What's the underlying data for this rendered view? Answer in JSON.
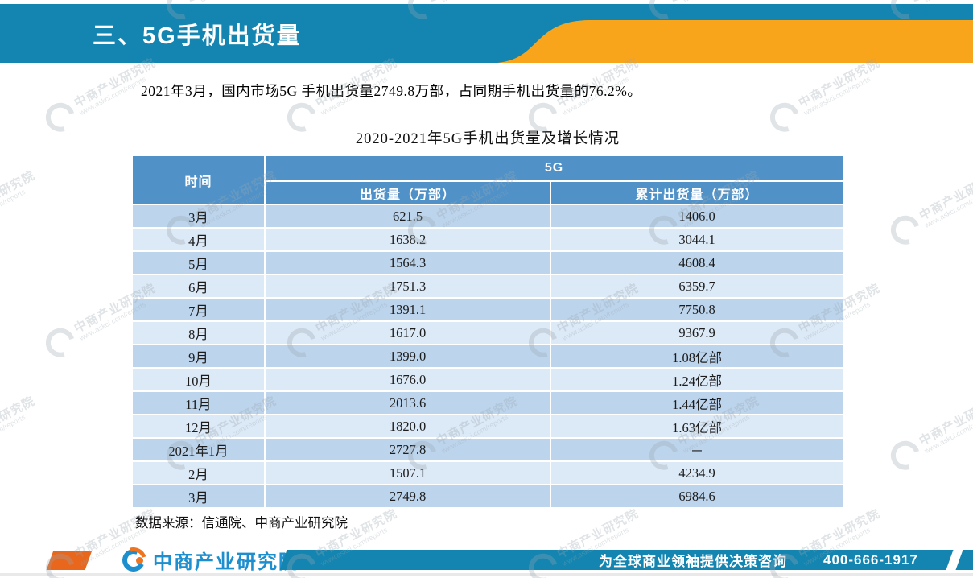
{
  "header": {
    "title": "三、5G手机出货量"
  },
  "intro": {
    "text": "2021年3月，国内市场5G 手机出货量2749.8万部，占同期手机出货量的76.2%。"
  },
  "table": {
    "title": "2020-2021年5G手机出货量及增长情况",
    "col_time": "时间",
    "col_group": "5G",
    "col_shipments": "出货量（万部）",
    "col_cumulative": "累计出货量（万部）",
    "rows": [
      {
        "time": "3月",
        "shipments": "621.5",
        "cumulative": "1406.0"
      },
      {
        "time": "4月",
        "shipments": "1638.2",
        "cumulative": "3044.1"
      },
      {
        "time": "5月",
        "shipments": "1564.3",
        "cumulative": "4608.4"
      },
      {
        "time": "6月",
        "shipments": "1751.3",
        "cumulative": "6359.7"
      },
      {
        "time": "7月",
        "shipments": "1391.1",
        "cumulative": "7750.8"
      },
      {
        "time": "8月",
        "shipments": "1617.0",
        "cumulative": "9367.9"
      },
      {
        "time": "9月",
        "shipments": "1399.0",
        "cumulative": "1.08亿部"
      },
      {
        "time": "10月",
        "shipments": "1676.0",
        "cumulative": "1.24亿部"
      },
      {
        "time": "11月",
        "shipments": "2013.6",
        "cumulative": "1.44亿部"
      },
      {
        "time": "12月",
        "shipments": "1820.0",
        "cumulative": "1.63亿部"
      },
      {
        "time": "2021年1月",
        "shipments": "2727.8",
        "cumulative": "－"
      },
      {
        "time": "2月",
        "shipments": "1507.1",
        "cumulative": "4234.9"
      },
      {
        "time": "3月",
        "shipments": "2749.8",
        "cumulative": "6984.6"
      }
    ]
  },
  "source": {
    "text": "数据来源：信通院、中商产业研究院"
  },
  "footer": {
    "logo_text": "中商产业研究院",
    "slogan": "为全球商业领袖提供决策咨询",
    "phone": "400-666-1917"
  },
  "watermark": {
    "line1": "中商产业研究院",
    "line2": "www.askci.com/reports"
  },
  "colors": {
    "header_blue": "#1485b0",
    "header_orange": "#f9a51b",
    "footer_orange": "#e8671c",
    "logo_blue": "#1e8fce",
    "logo_orange": "#ee7420",
    "table_header_blue": "#5092c8",
    "row_dark": "#bcd4ec",
    "row_light": "#dce9f6"
  }
}
